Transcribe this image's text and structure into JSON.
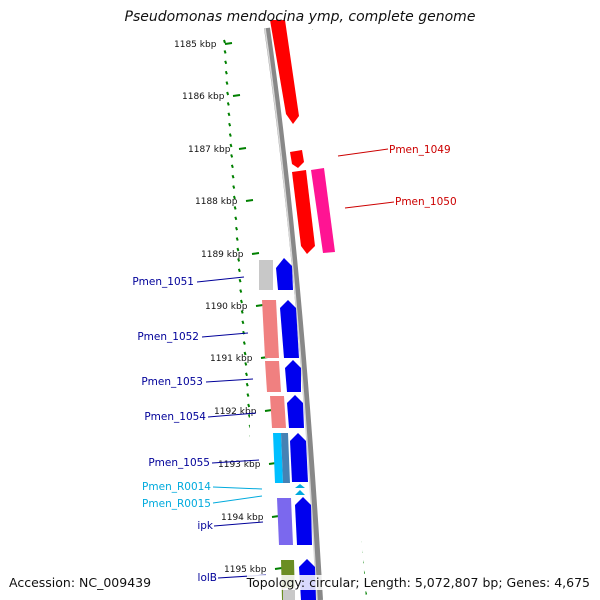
{
  "title": "Pseudomonas mendocina ymp, complete genome",
  "accession": "Accession: NC_009439",
  "stats": "Topology: circular; Length: 5,072,807 bp; Genes: 4,675",
  "kbp_labels": [
    "1185 kbp",
    "1186 kbp",
    "1187 kbp",
    "1188 kbp",
    "1189 kbp",
    "1190 kbp",
    "1191 kbp",
    "1192 kbp",
    "1193 kbp",
    "1194 kbp",
    "1195 kbp"
  ],
  "genes": [
    {
      "name": "Pmen_1049",
      "color": "#cc0000"
    },
    {
      "name": "Pmen_1050",
      "color": "#cc0000"
    },
    {
      "name": "Pmen_1051",
      "color": "#000099"
    },
    {
      "name": "Pmen_1052",
      "color": "#000099"
    },
    {
      "name": "Pmen_1053",
      "color": "#000099"
    },
    {
      "name": "Pmen_1054",
      "color": "#000099"
    },
    {
      "name": "Pmen_1055",
      "color": "#000099"
    },
    {
      "name": "Pmen_R0014",
      "color": "#00aadd"
    },
    {
      "name": "Pmen_R0015",
      "color": "#00aadd"
    },
    {
      "name": "ipk",
      "color": "#000099"
    },
    {
      "name": "lolB",
      "color": "#000099"
    }
  ],
  "colors": {
    "forward_cds": "#ff0000",
    "forward_alt": "#ff1493",
    "reverse_cds": "#0000ee",
    "cog_grey": "#c8c8c8",
    "cog_salmon": "#f08080",
    "cog_cyan": "#00bfff",
    "cog_steel": "#4682b4",
    "cog_purple": "#7b68ee",
    "cog_olive": "#6b8e23",
    "backbone": "#8a8a8a",
    "ticks": "#008000"
  }
}
